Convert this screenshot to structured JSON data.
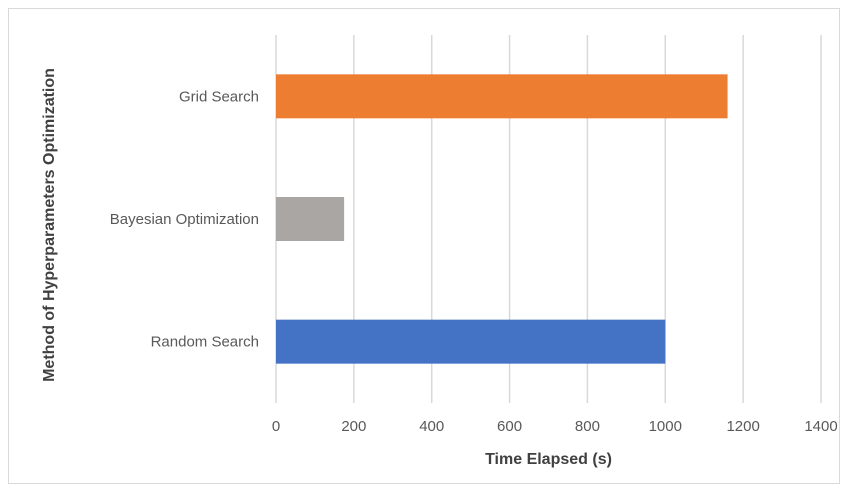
{
  "chart_data": {
    "type": "bar",
    "orientation": "horizontal",
    "title": "",
    "xlabel": "Time Elapsed (s)",
    "ylabel": "Method of Hyperparameters Optimization",
    "categories": [
      "Random Search",
      "Bayesian Optimization",
      "Grid Search"
    ],
    "values": [
      1000,
      175,
      1160
    ],
    "colors": [
      "#4472c4",
      "#aaa6a4",
      "#ed7d31"
    ],
    "xlim": [
      0,
      1400
    ],
    "xticks": [
      "0",
      "200",
      "400",
      "600",
      "800",
      "1000",
      "1200",
      "1400"
    ],
    "grid": true,
    "gridline_color": "#d9d9d9",
    "legend": "none"
  }
}
